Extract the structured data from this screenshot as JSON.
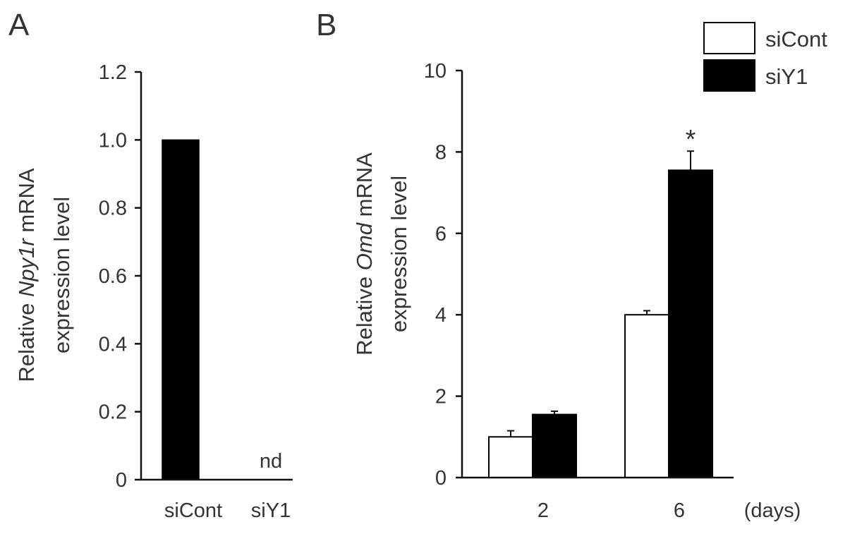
{
  "chart_data": [
    {
      "panel": "A",
      "type": "bar",
      "ylabel": {
        "line1_prefix": "Relative ",
        "gene": "Npy1r",
        "line1_suffix": " mRNA",
        "line2": "expression level"
      },
      "ylim": [
        0,
        1.2
      ],
      "yticks": [
        "0",
        "0.2",
        "0.4",
        "0.6",
        "0.8",
        "1.0",
        "1.2"
      ],
      "categories": [
        "siCont",
        "siY1"
      ],
      "values": [
        1.0,
        null
      ],
      "annotations": [
        "",
        "nd"
      ],
      "color": "#000000"
    },
    {
      "panel": "B",
      "type": "bar",
      "ylabel": {
        "line1_prefix": "Relative ",
        "gene": "Omd",
        "line1_suffix": " mRNA",
        "line2": "expression level"
      },
      "ylim": [
        0,
        10
      ],
      "yticks": [
        "0",
        "2",
        "4",
        "6",
        "8",
        "10"
      ],
      "categories": [
        "2",
        "6"
      ],
      "xunit": "(days)",
      "series": [
        {
          "name": "siCont",
          "color": "#ffffff",
          "values": [
            1.0,
            4.0
          ],
          "errors": [
            0.15,
            0.1
          ],
          "marks": [
            "",
            ""
          ]
        },
        {
          "name": "siY1",
          "color": "#000000",
          "values": [
            1.55,
            7.55
          ],
          "errors": [
            0.08,
            0.47
          ],
          "marks": [
            "",
            "*"
          ]
        }
      ],
      "legend": "top-right"
    }
  ]
}
